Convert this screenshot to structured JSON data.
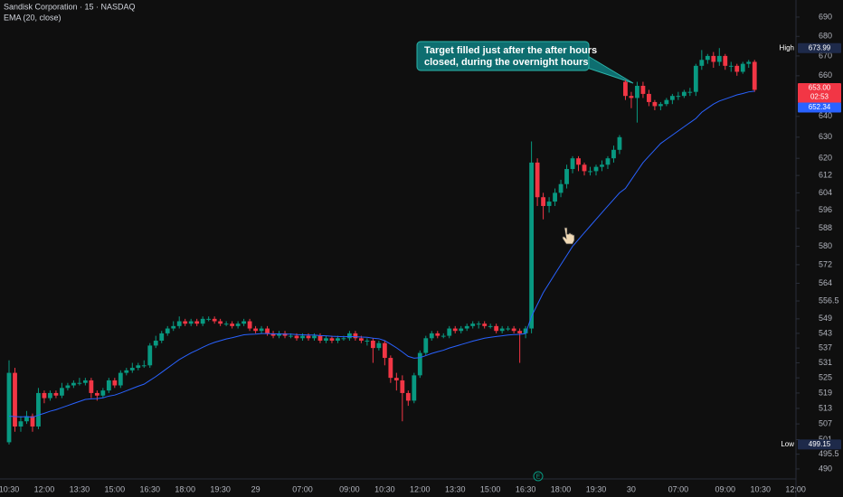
{
  "chart_data": {
    "type": "candlestick",
    "title": "Sandisk Corporation · 15 · NASDAQ",
    "subtitle": "EMA (20, close)",
    "log_scale": true,
    "grid": false,
    "colors": {
      "up": "#089981",
      "down": "#f23645",
      "background": "#0f0f0f",
      "text": "#b2b5be"
    },
    "ylim": [
      486.3,
      699
    ],
    "yticks": [
      690,
      680,
      670,
      660,
      640,
      630,
      620,
      612,
      604,
      596,
      588,
      580,
      572,
      564,
      556.5,
      549,
      543,
      537,
      531,
      525,
      519,
      513,
      507,
      501,
      495.5,
      490
    ],
    "categories": [
      "10:30",
      null,
      null,
      null,
      null,
      null,
      "12:00",
      null,
      null,
      null,
      null,
      null,
      "13:30",
      null,
      null,
      null,
      null,
      null,
      "15:00",
      null,
      null,
      null,
      null,
      null,
      "16:30",
      null,
      null,
      null,
      null,
      null,
      "18:00",
      null,
      null,
      null,
      null,
      null,
      "19:30",
      null,
      null,
      null,
      null,
      null,
      "29",
      null,
      null,
      null,
      null,
      null,
      null,
      null,
      "07:00",
      null,
      null,
      null,
      null,
      null,
      null,
      null,
      "09:00",
      null,
      null,
      null,
      null,
      null,
      "10:30",
      null,
      null,
      null,
      null,
      null,
      "12:00",
      null,
      null,
      null,
      null,
      null,
      "13:30",
      null,
      null,
      null,
      null,
      null,
      "15:00",
      null,
      null,
      null,
      null,
      null,
      "16:30",
      null,
      null,
      null,
      null,
      null,
      "18:00",
      null,
      null,
      null,
      null,
      null,
      "19:30",
      null,
      null,
      null,
      null,
      null,
      "30",
      null,
      null,
      null,
      null,
      null,
      null,
      null,
      "07:00",
      null,
      null,
      null,
      null,
      null,
      null,
      null,
      "09:00",
      null,
      null,
      null,
      null,
      null,
      "10:30",
      null,
      null,
      null,
      null,
      null,
      "12:00"
    ],
    "open": [
      500,
      527,
      506,
      508,
      510,
      506,
      519,
      517,
      519,
      518,
      521,
      522,
      523,
      523,
      524,
      519,
      518,
      520,
      524,
      522,
      527,
      528,
      529,
      530,
      530,
      538,
      540,
      543,
      545,
      546,
      548,
      547,
      548,
      547,
      549,
      549,
      548,
      547,
      547,
      546,
      547,
      548,
      545,
      544,
      545,
      543,
      542,
      543,
      542,
      542,
      541,
      542,
      541,
      542,
      540,
      541,
      540,
      541,
      541,
      543,
      541,
      540,
      540,
      537,
      539,
      533,
      525,
      524,
      519,
      516,
      526,
      535,
      541,
      543,
      542,
      542,
      545,
      544,
      545,
      546,
      547,
      547,
      546,
      546,
      544,
      545,
      545,
      544,
      543,
      545,
      618,
      602,
      598,
      600,
      604,
      608,
      615,
      620,
      617,
      614,
      614,
      616,
      617,
      620,
      624,
      657,
      650,
      649,
      655,
      651,
      647,
      645,
      646,
      648,
      650,
      650,
      652,
      652,
      665,
      668,
      670,
      667,
      670,
      665,
      665,
      662,
      666,
      667,
      null,
      null,
      null,
      null,
      null,
      null,
      null
    ],
    "high": [
      532,
      529,
      510,
      512,
      511,
      521,
      520,
      520,
      520,
      523,
      523,
      524,
      525,
      525,
      525,
      520,
      521,
      525,
      525,
      528,
      529,
      531,
      531,
      532,
      539,
      542,
      544,
      546,
      548,
      550,
      549,
      549,
      549,
      550,
      550,
      550,
      549,
      548,
      548,
      548,
      549,
      549,
      546,
      546,
      546,
      544,
      544,
      544,
      543,
      543,
      543,
      543,
      543,
      543,
      542,
      542,
      542,
      542,
      544,
      544,
      542,
      541,
      541,
      540,
      540,
      534,
      527,
      526,
      520,
      527,
      536,
      542,
      544,
      544,
      543,
      546,
      546,
      546,
      547,
      548,
      548,
      548,
      547,
      547,
      546,
      546,
      546,
      545,
      546,
      628,
      620,
      604,
      602,
      606,
      610,
      617,
      621,
      621,
      618,
      616,
      617,
      619,
      621,
      626,
      631,
      658,
      652,
      657,
      657,
      653,
      648,
      647,
      649,
      651,
      652,
      653,
      654,
      666,
      673,
      671,
      672,
      673.99,
      671,
      667,
      666,
      667,
      668,
      668,
      null,
      null,
      null,
      null,
      null,
      null,
      null
    ],
    "low": [
      499.15,
      504,
      504,
      507,
      504,
      505,
      515,
      516,
      517,
      517,
      520,
      521,
      522,
      522,
      517,
      516,
      517,
      519,
      521,
      521,
      526,
      527,
      528,
      529,
      529,
      537,
      539,
      542,
      544,
      545,
      546,
      546,
      546,
      546,
      548,
      547,
      546,
      546,
      545,
      545,
      546,
      544,
      543,
      543,
      542,
      541,
      541,
      541,
      541,
      540,
      540,
      540,
      540,
      539,
      539,
      539,
      539,
      540,
      540,
      540,
      539,
      538,
      531,
      536,
      530,
      523,
      520,
      508,
      514,
      515,
      525,
      534,
      540,
      541,
      541,
      541,
      543,
      543,
      544,
      545,
      545,
      545,
      545,
      543,
      543,
      544,
      543,
      531,
      541,
      543,
      598,
      592,
      595,
      598,
      602,
      606,
      613,
      614,
      612,
      612,
      612,
      614,
      615,
      618,
      622,
      648,
      644,
      637,
      649,
      645,
      643,
      643,
      645,
      646,
      648,
      649,
      650,
      650,
      663,
      666,
      664,
      665,
      663,
      662,
      660,
      661,
      664,
      652,
      null,
      null,
      null,
      null,
      null,
      null,
      null
    ],
    "close": [
      527,
      506,
      508,
      510,
      506,
      519,
      517,
      519,
      518,
      521,
      522,
      523,
      523,
      524,
      519,
      518,
      520,
      524,
      522,
      527,
      528,
      529,
      530,
      530,
      538,
      540,
      543,
      545,
      546,
      548,
      547,
      548,
      547,
      549,
      549,
      548,
      547,
      547,
      546,
      547,
      548,
      545,
      544,
      545,
      543,
      542,
      543,
      542,
      542,
      541,
      542,
      541,
      542,
      540,
      541,
      540,
      541,
      541,
      543,
      541,
      540,
      540,
      537,
      539,
      533,
      525,
      524,
      519,
      516,
      526,
      535,
      541,
      543,
      542,
      542,
      545,
      544,
      545,
      546,
      547,
      547,
      546,
      546,
      544,
      545,
      545,
      544,
      543,
      545,
      618,
      602,
      598,
      600,
      604,
      608,
      615,
      620,
      617,
      614,
      614,
      616,
      617,
      620,
      624,
      630,
      650,
      649,
      655,
      651,
      647,
      645,
      646,
      648,
      650,
      650,
      652,
      652,
      665,
      668,
      670,
      667,
      670,
      665,
      665,
      662,
      666,
      667,
      653,
      null,
      null,
      null,
      null,
      null,
      null,
      null
    ],
    "ema": {
      "color": "#2962ff",
      "values": [
        510,
        509.8,
        509.7,
        509.8,
        509.5,
        510.4,
        511.1,
        511.9,
        512.5,
        513.3,
        514.1,
        514.9,
        515.7,
        516.5,
        516.7,
        516.8,
        517.1,
        517.8,
        518.2,
        519,
        519.9,
        520.8,
        521.7,
        522.5,
        524,
        525.5,
        527.2,
        528.9,
        530.6,
        532.3,
        533.7,
        535,
        536.1,
        537.3,
        538.4,
        539.3,
        540,
        540.7,
        541.2,
        541.8,
        542.4,
        542.6,
        542.7,
        542.9,
        542.9,
        542.8,
        542.8,
        542.7,
        542.7,
        542.5,
        542.4,
        542.3,
        542.3,
        542.1,
        542,
        541.8,
        541.7,
        541.6,
        541.7,
        541.6,
        541.5,
        541.4,
        541,
        540.8,
        540,
        538.6,
        537.1,
        535.4,
        533.6,
        532.9,
        533.1,
        533.9,
        534.8,
        535.5,
        536.1,
        537,
        537.7,
        538.4,
        539.1,
        539.8,
        540.4,
        541,
        541.4,
        541.7,
        542,
        542.3,
        542.5,
        542.6,
        542.9,
        550,
        555,
        560,
        564,
        568,
        572,
        576,
        580,
        583,
        586,
        589,
        592,
        595,
        598,
        601,
        604,
        606,
        610,
        614,
        618,
        621,
        624,
        627,
        629,
        631,
        633,
        635,
        637,
        639,
        642,
        644,
        646,
        647.5,
        648.5,
        649.5,
        650.5,
        651.2,
        652,
        652.34,
        null,
        null,
        null,
        null,
        null,
        null,
        null
      ]
    },
    "high_label": {
      "text": "High",
      "value": 673.99
    },
    "low_label": {
      "text": "Low",
      "value": 499.15
    },
    "last_price": {
      "value": 653,
      "label": "653.00"
    },
    "countdown": "02:53",
    "ema_last": 652.34,
    "event_marker": "E",
    "annotation": {
      "lines": [
        "Target filled just after the after hours",
        "closed, during the overnight hours"
      ]
    }
  }
}
